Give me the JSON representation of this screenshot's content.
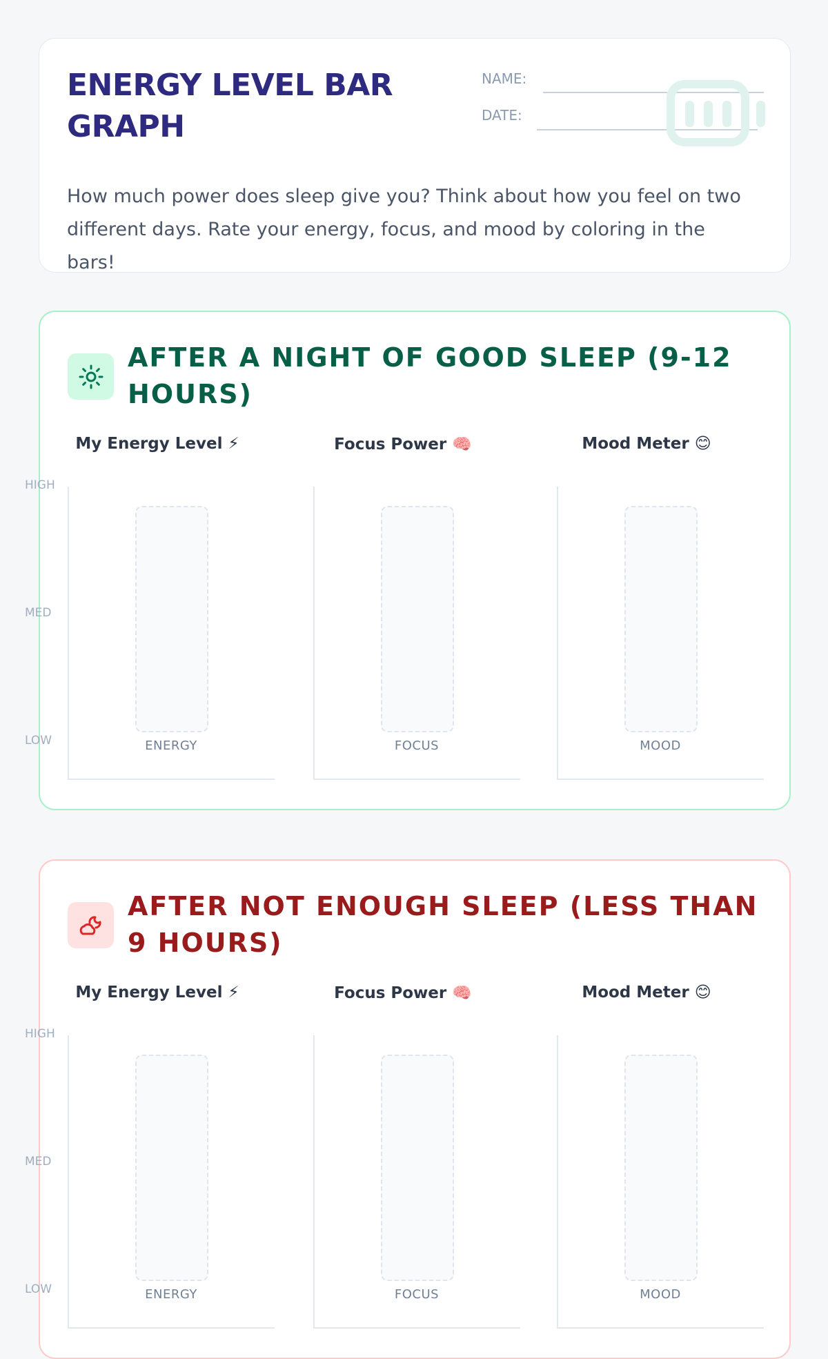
{
  "header": {
    "title": "ENERGY LEVEL BAR GRAPH",
    "name_label": "NAME:",
    "date_label": "DATE:",
    "intro": "How much power does sleep give you? Think about how you feel on two different days. Rate your energy, focus, and mood by coloring in the bars!",
    "icon": "battery-icon"
  },
  "y_levels": [
    "HIGH",
    "MED",
    "LOW"
  ],
  "sections": [
    {
      "title": "AFTER A NIGHT OF GOOD SLEEP (9-12 HOURS)",
      "icon": "sun-icon",
      "colors": {
        "title": "#065f46",
        "border": "#a7f0c9",
        "icon_bg": "#d1fae5",
        "icon": "#047857"
      },
      "charts": [
        {
          "title": "My Energy Level ⚡",
          "bar_label": "ENERGY"
        },
        {
          "title": "Focus Power 🧠",
          "bar_label": "FOCUS"
        },
        {
          "title": "Mood Meter 😊",
          "bar_label": "MOOD"
        }
      ]
    },
    {
      "title": "AFTER NOT ENOUGH SLEEP (LESS THAN 9 HOURS)",
      "icon": "moon-cloud-icon",
      "colors": {
        "title": "#991b1b",
        "border": "#fecaca",
        "icon_bg": "#fee2e2",
        "icon": "#dc2626"
      },
      "charts": [
        {
          "title": "My Energy Level ⚡",
          "bar_label": "ENERGY"
        },
        {
          "title": "Focus Power 🧠",
          "bar_label": "FOCUS"
        },
        {
          "title": "Mood Meter 😊",
          "bar_label": "MOOD"
        }
      ]
    }
  ]
}
